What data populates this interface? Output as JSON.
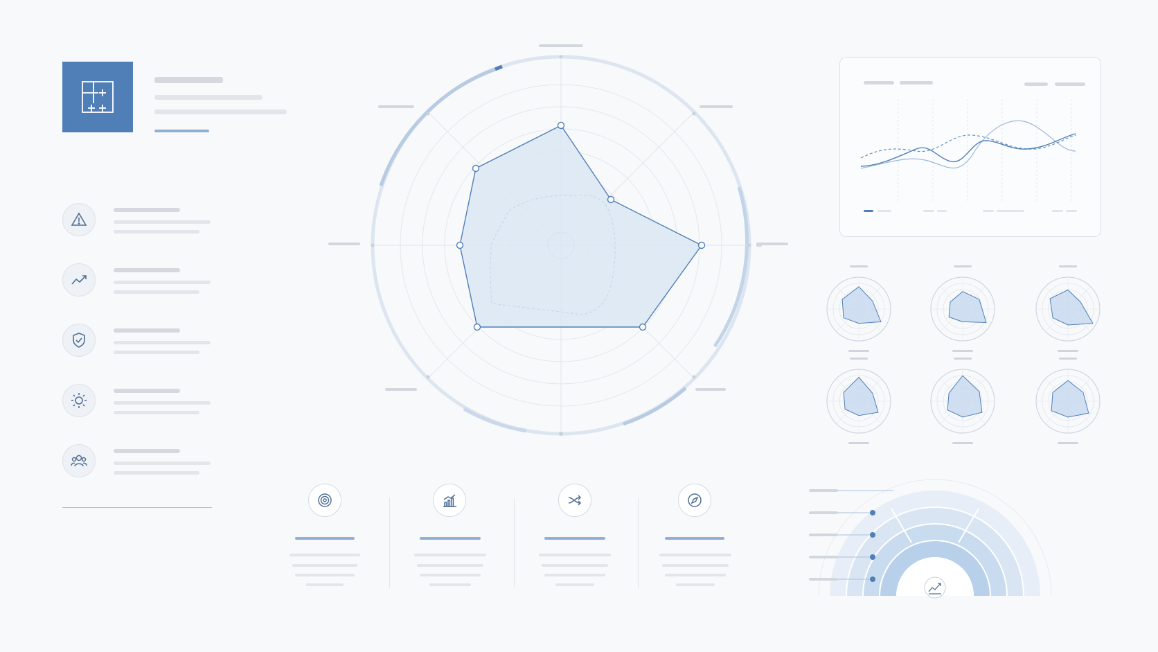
{
  "header": {
    "logo_icon": "floorplan-icon",
    "accent": "#4f7fb6"
  },
  "sidebar": {
    "items": [
      {
        "icon": "warning-icon"
      },
      {
        "icon": "trend-up-icon"
      },
      {
        "icon": "shield-check-icon"
      },
      {
        "icon": "sun-icon"
      },
      {
        "icon": "users-icon"
      }
    ]
  },
  "features": [
    {
      "icon": "target-icon"
    },
    {
      "icon": "bar-chart-icon"
    },
    {
      "icon": "shuffle-icon"
    },
    {
      "icon": "compass-icon"
    }
  ],
  "gauge": {
    "icon": "trend-chart-icon"
  },
  "colors": {
    "primary": "#4f7fb6",
    "light_fill": "#dce7f3",
    "ring": "#c5d5e8",
    "grid": "#e3e7ec",
    "background": "#f8f9fb"
  }
}
